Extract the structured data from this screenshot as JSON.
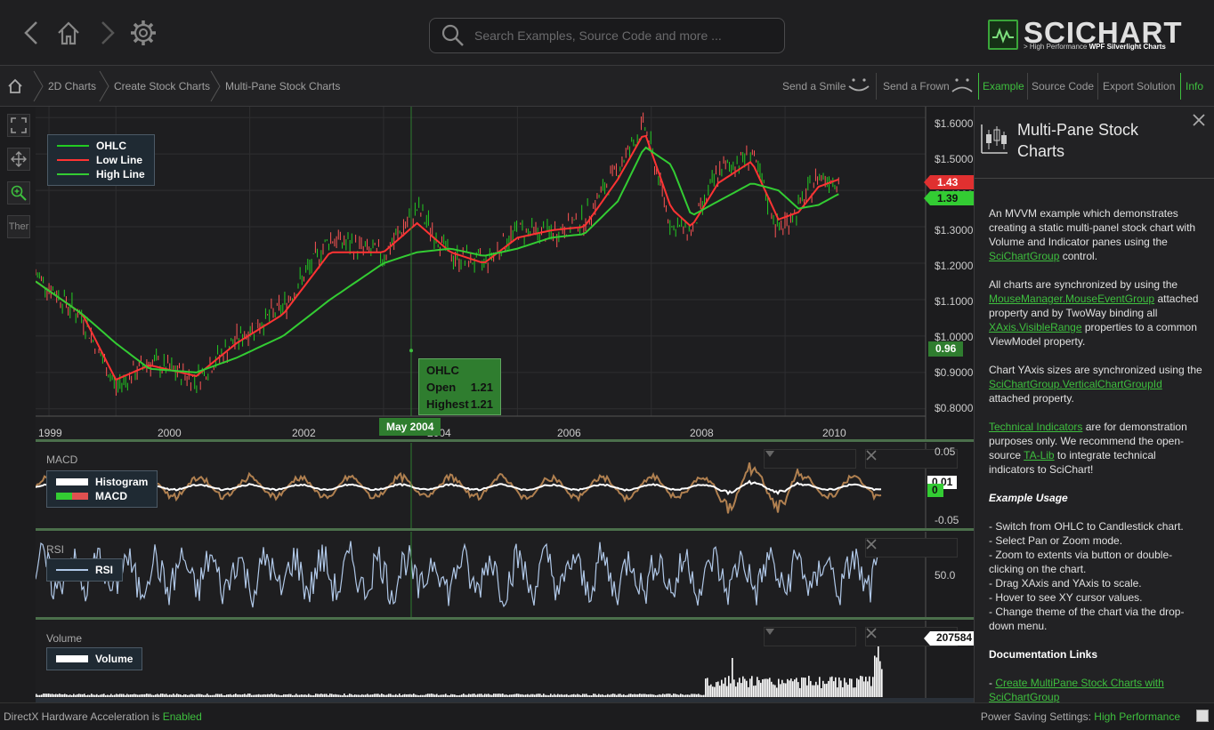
{
  "topbar": {
    "search_placeholder": "Search Examples, Source Code and more ...",
    "logo_text": "SCICHART",
    "logo_sub_prefix": "> High Performance ",
    "logo_sub_bold": "WPF Silverlight Charts"
  },
  "breadcrumb": {
    "items": [
      "2D Charts",
      "Create Stock Charts",
      "Multi-Pane Stock Charts"
    ]
  },
  "actions": {
    "send_smile": "Send a Smile",
    "send_frown": "Send a Frown",
    "example": "Example",
    "source_code": "Source Code",
    "export_solution": "Export Solution",
    "info": "Info"
  },
  "lefttools": {
    "theme_label": "Ther"
  },
  "colors": {
    "accent": "#3ebf3e",
    "ohlc": "#22cc22",
    "low_line": "#ff3333",
    "high_line": "#33cc33",
    "macd_fill": "#b08050",
    "rsi": "#b0c8e8"
  },
  "panes": {
    "price": {
      "legend": [
        "OHLC",
        "Low Line",
        "High Line"
      ],
      "y_ticks": [
        "$1.6000",
        "$1.5000",
        "$1.4000",
        "$1.3000",
        "$1.2000",
        "$1.1000",
        "$1.0000",
        "$0.9000",
        "$0.8000"
      ],
      "x_ticks": [
        "1999",
        "2000",
        "2002",
        "2004",
        "2006",
        "2008",
        "2010"
      ],
      "badge_low": "1.43",
      "badge_high": "1.39",
      "badge_cursor": "0.96",
      "cursor_x_label": "May 2004",
      "tooltip": {
        "title": "OHLC",
        "open_label": "Open",
        "open_value": "1.21",
        "highest_label": "Highest",
        "highest_value": "1.21"
      }
    },
    "macd": {
      "title": "MACD",
      "legend": [
        "Histogram",
        "MACD"
      ],
      "y_ticks": [
        "0.05",
        "-0.05"
      ],
      "badge_a": "0.01",
      "badge_b": "0"
    },
    "rsi": {
      "title": "RSI",
      "legend": [
        "RSI"
      ],
      "y_ticks": [
        "50.0"
      ]
    },
    "volume": {
      "title": "Volume",
      "legend": [
        "Volume"
      ],
      "badge": "207584"
    }
  },
  "chart_data": [
    {
      "type": "line",
      "title": "",
      "series": [
        {
          "name": "OHLC",
          "x": [
            1998.8,
            1999.5,
            2000.0,
            2000.5,
            2001.2,
            2001.8,
            2002.5,
            2003.2,
            2004.0,
            2004.5,
            2005.0,
            2005.5,
            2006.0,
            2006.5,
            2007.0,
            2007.5,
            2007.9,
            2008.3,
            2008.6,
            2009.0,
            2009.5,
            2009.9,
            2010.2,
            2010.5,
            2010.8
          ],
          "values": [
            1.17,
            1.05,
            0.86,
            0.93,
            0.88,
            0.99,
            1.08,
            1.27,
            1.22,
            1.35,
            1.22,
            1.2,
            1.29,
            1.28,
            1.32,
            1.46,
            1.58,
            1.3,
            1.29,
            1.45,
            1.5,
            1.29,
            1.35,
            1.44,
            1.43
          ]
        },
        {
          "name": "Low Line",
          "x": [
            1998.8,
            1999.5,
            2000.0,
            2000.5,
            2001.2,
            2001.8,
            2002.5,
            2003.2,
            2004.0,
            2004.5,
            2005.0,
            2005.5,
            2006.0,
            2006.5,
            2007.0,
            2007.5,
            2007.9,
            2008.3,
            2008.6,
            2009.0,
            2009.5,
            2009.9,
            2010.2,
            2010.5,
            2010.8
          ],
          "values": [
            1.15,
            1.06,
            0.88,
            0.92,
            0.89,
            0.98,
            1.06,
            1.23,
            1.23,
            1.31,
            1.23,
            1.2,
            1.27,
            1.29,
            1.3,
            1.43,
            1.56,
            1.35,
            1.3,
            1.42,
            1.48,
            1.32,
            1.34,
            1.41,
            1.43
          ]
        },
        {
          "name": "High Line",
          "x": [
            1998.8,
            1999.5,
            2000.0,
            2000.5,
            2001.2,
            2001.8,
            2002.5,
            2003.2,
            2004.0,
            2004.5,
            2005.0,
            2005.5,
            2006.0,
            2006.5,
            2007.0,
            2007.5,
            2007.9,
            2008.3,
            2008.6,
            2009.0,
            2009.5,
            2009.9,
            2010.2,
            2010.5,
            2010.8
          ],
          "values": [
            1.15,
            1.06,
            0.98,
            0.91,
            0.9,
            0.94,
            1.0,
            1.1,
            1.2,
            1.23,
            1.24,
            1.22,
            1.24,
            1.27,
            1.28,
            1.37,
            1.52,
            1.47,
            1.33,
            1.37,
            1.42,
            1.4,
            1.35,
            1.36,
            1.39
          ]
        }
      ],
      "y_ticks": [
        1.6,
        1.5,
        1.4,
        1.3,
        1.2,
        1.1,
        1.0,
        0.9,
        0.8
      ],
      "ylim": [
        0.78,
        1.62
      ],
      "xlim": [
        1998.8,
        2012.1
      ],
      "grid": true,
      "legend": "top-left"
    },
    {
      "type": "line",
      "title": "MACD",
      "series": [
        {
          "name": "MACD",
          "pattern": "oscillating"
        }
      ],
      "y_ticks": [
        0.05,
        -0.05
      ],
      "ylim": [
        -0.06,
        0.06
      ]
    },
    {
      "type": "line",
      "title": "RSI",
      "series": [
        {
          "name": "RSI",
          "pattern": "oscillating"
        }
      ],
      "y_ticks": [
        50.0
      ]
    },
    {
      "type": "bar",
      "title": "Volume",
      "series": [
        {
          "name": "Volume",
          "last_value": 207584
        }
      ]
    }
  ],
  "info": {
    "title": "Multi-Pane Stock Charts",
    "p1_a": "An MVVM example which demonstrates creating a static multi-panel stock chart with Volume and Indicator panes using the ",
    "p1_link": "SciChartGroup",
    "p1_b": " control.",
    "p2_a": "All charts are synchronized by using the ",
    "p2_link1": "MouseManager.MouseEventGroup",
    "p2_b": " attached property and by TwoWay binding all ",
    "p2_link2": "XAxis.VisibleRange",
    "p2_c": " properties to a common ViewModel property.",
    "p3_a": "Chart YAxis sizes are synchronized using the ",
    "p3_link": "SciChartGroup.VerticalChartGroupId",
    "p3_b": " attached property.",
    "p4_link1": "Technical Indicators",
    "p4_a": " are for demonstration purposes only. We recommend the open-source ",
    "p4_link2": "TA-Lib",
    "p4_b": " to integrate technical indicators to SciChart!",
    "usage_heading": "Example Usage",
    "usage": [
      "- Switch from OHLC to Candlestick chart.",
      "- Select Pan or Zoom mode.",
      "- Zoom to extents via button or double-clicking on the chart.",
      "- Drag XAxis and YAxis to scale.",
      "- Hover to see XY cursor values.",
      "- Change theme of the chart via the drop-down menu."
    ],
    "docs_heading": "Documentation Links",
    "docs_link": "Create MultiPane Stock Charts with SciChartGroup"
  },
  "status": {
    "left_prefix": "DirectX Hardware Acceleration is ",
    "left_value": "Enabled",
    "right_prefix": "Power Saving Settings: ",
    "right_value": "High Performance"
  }
}
